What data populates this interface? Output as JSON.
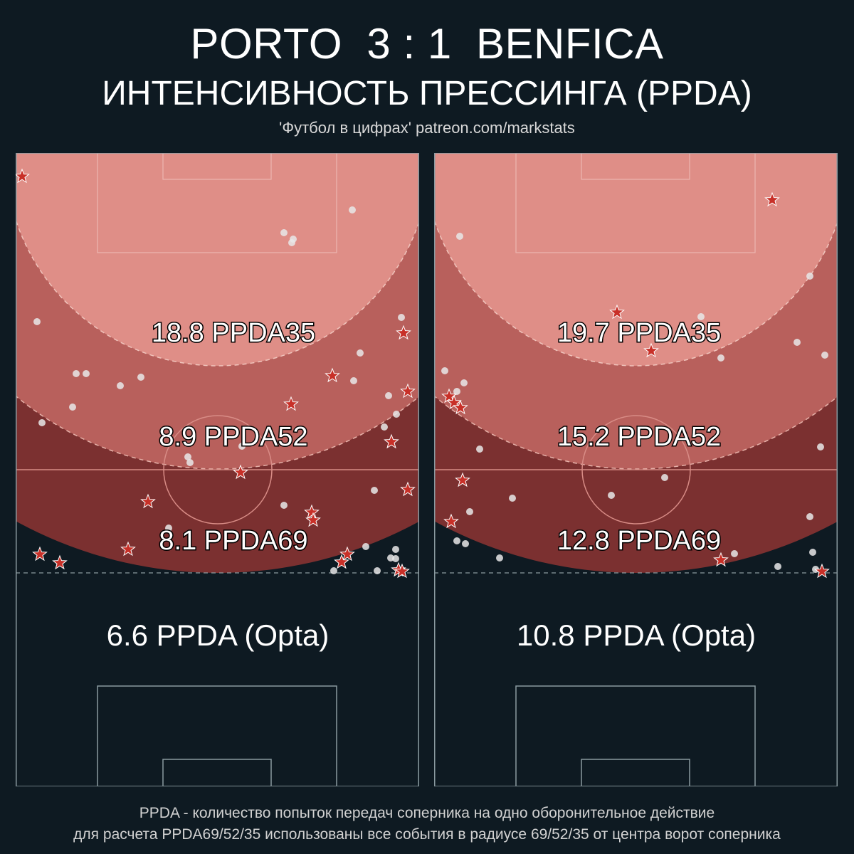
{
  "header": {
    "title": "PORTO  3 : 1  BENFICA",
    "subtitle": "ИНТЕНСИВНОСТЬ ПРЕССИНГА (PPDA)",
    "credit": "'Футбол в цифрах' patreon.com/markstats"
  },
  "colors": {
    "background": "#0e1a22",
    "zone69": "#7b3030",
    "zone52": "#b8605c",
    "zone35": "#df8e87",
    "pitch_lines": "#8a9aa0",
    "star": "#c83028",
    "dot": "#e8e8e8"
  },
  "panels": [
    {
      "team": "Porto",
      "ppda69": "8.1 PPDA69",
      "ppda52": "8.9 PPDA52",
      "ppda35": "18.8 PPDA35",
      "opta": "6.6 PPDA (Opta)"
    },
    {
      "team": "Benfica",
      "ppda69": "12.8 PPDA69",
      "ppda52": "15.2 PPDA52",
      "ppda35": "19.7 PPDA35",
      "opta": "10.8 PPDA (Opta)"
    }
  ],
  "footer": {
    "line1": "PPDA - количество попыток передач соперника на одно оборонительное действие",
    "line2": "для расчета PPDA69/52/35 использованы все события в радиусе 69/52/35 от центра ворот соперника"
  }
}
